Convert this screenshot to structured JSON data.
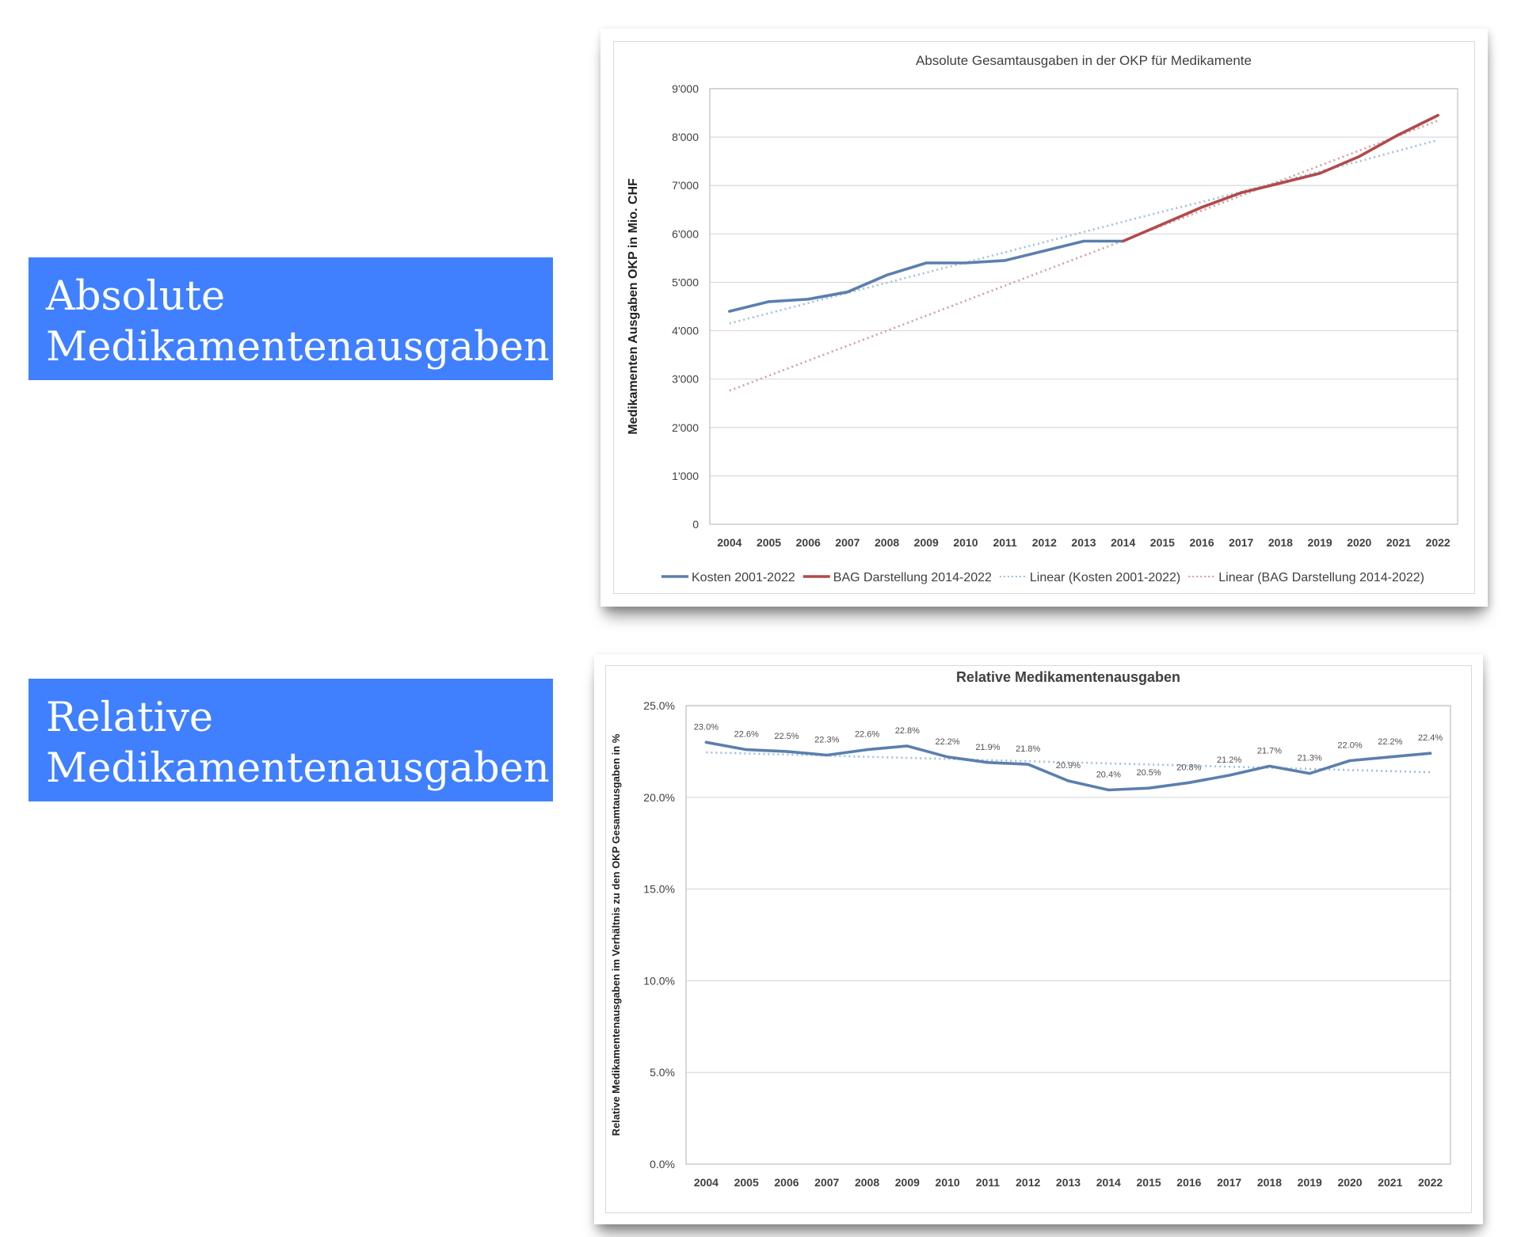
{
  "labels": {
    "absolute": {
      "line1": "Absolute",
      "line2": "Medikamentenausgaben"
    },
    "relative": {
      "line1": "Relative",
      "line2": "Medikamentenausgaben"
    }
  },
  "colors": {
    "label_box": "#4080ff",
    "kosten": "#5b7fad",
    "bag": "#b24a4a",
    "trend_kosten": "#9fbfdc",
    "trend_bag": "#d99a9a",
    "grid": "#d9d9d9",
    "text": "#404040"
  },
  "chart_data": [
    {
      "type": "line",
      "title": "Absolute Gesamtausgaben in der OKP für Medikamente",
      "ylabel": "Medikamenten Ausgaben OKP in Mio. CHF",
      "xlabel": "",
      "ylim": [
        0,
        9000
      ],
      "yticks": [
        0,
        1000,
        2000,
        3000,
        4000,
        5000,
        6000,
        7000,
        8000,
        9000
      ],
      "ytick_labels": [
        "0",
        "1'000",
        "2'000",
        "3'000",
        "4'000",
        "5'000",
        "6'000",
        "7'000",
        "8'000",
        "9'000"
      ],
      "categories": [
        "2004",
        "2005",
        "2006",
        "2007",
        "2008",
        "2009",
        "2010",
        "2011",
        "2012",
        "2013",
        "2014",
        "2015",
        "2016",
        "2017",
        "2018",
        "2019",
        "2020",
        "2021",
        "2022"
      ],
      "grid": true,
      "legend_position": "bottom",
      "series": [
        {
          "name": "Kosten 2001-2022",
          "style": "solid",
          "color": "#5b7fad",
          "values": [
            4400,
            4600,
            4650,
            4800,
            5150,
            5400,
            5400,
            5450,
            5650,
            5850,
            5850,
            null,
            null,
            null,
            null,
            null,
            null,
            null,
            null
          ]
        },
        {
          "name": "BAG Darstellung 2014-2022",
          "style": "solid",
          "color": "#b24a4a",
          "values": [
            null,
            null,
            null,
            null,
            null,
            null,
            null,
            null,
            null,
            null,
            5850,
            6200,
            6550,
            6850,
            7050,
            7250,
            7600,
            8050,
            8450
          ]
        },
        {
          "name": "Linear (Kosten 2001-2022)",
          "style": "dotted",
          "color": "#9fbfdc",
          "values": [
            4150,
            4360,
            4570,
            4780,
            4990,
            5200,
            5410,
            5620,
            5830,
            6040,
            6250,
            6460,
            6660,
            6870,
            7080,
            7290,
            7500,
            7720,
            7940
          ]
        },
        {
          "name": "Linear (BAG Darstellung 2014-2022)",
          "style": "dotted",
          "color": "#d99a9a",
          "values": [
            2760,
            3070,
            3380,
            3690,
            4000,
            4310,
            4620,
            4930,
            5240,
            5550,
            5860,
            6170,
            6480,
            6790,
            7100,
            7410,
            7720,
            8030,
            8340
          ]
        }
      ]
    },
    {
      "type": "line",
      "title": "Relative Medikamentenausgaben",
      "ylabel": "Relative Medikamentenausgaben im Verhältnis zu den OKP Gesamtausgaben in %",
      "xlabel": "",
      "ylim": [
        0,
        25
      ],
      "yticks": [
        0,
        5,
        10,
        15,
        20,
        25
      ],
      "ytick_labels": [
        "0.0%",
        "5.0%",
        "10.0%",
        "15.0%",
        "20.0%",
        "25.0%"
      ],
      "categories": [
        "2004",
        "2005",
        "2006",
        "2007",
        "2008",
        "2009",
        "2010",
        "2011",
        "2012",
        "2013",
        "2014",
        "2015",
        "2016",
        "2017",
        "2018",
        "2019",
        "2020",
        "2021",
        "2022"
      ],
      "grid": true,
      "legend_position": "none",
      "series": [
        {
          "style": "solid",
          "color": "#5b7fad",
          "values": [
            23.0,
            22.6,
            22.5,
            22.3,
            22.6,
            22.8,
            22.2,
            21.9,
            21.8,
            20.9,
            20.4,
            20.5,
            20.8,
            21.2,
            21.7,
            21.3,
            22.0,
            22.2,
            22.4
          ],
          "data_labels": [
            "23.0%",
            "22.6%",
            "22.5%",
            "22.3%",
            "22.6%",
            "22.8%",
            "22.2%",
            "21.9%",
            "21.8%",
            "20.9%",
            "20.4%",
            "20.5%",
            "20.8%",
            "21.2%",
            "21.7%",
            "21.3%",
            "22.0%",
            "22.2%",
            "22.4%"
          ]
        },
        {
          "style": "dotted",
          "color": "#9fbfdc",
          "values": [
            22.45,
            22.39,
            22.33,
            22.27,
            22.21,
            22.15,
            22.09,
            22.03,
            21.97,
            21.91,
            21.85,
            21.79,
            21.73,
            21.67,
            21.61,
            21.55,
            21.49,
            21.43,
            21.37
          ]
        }
      ]
    }
  ]
}
